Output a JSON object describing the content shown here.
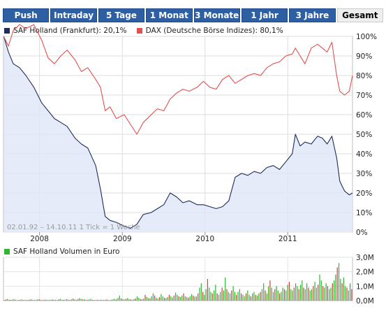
{
  "tabs": [
    {
      "label": "Push",
      "active": false
    },
    {
      "label": "Intraday",
      "active": false
    },
    {
      "label": "5 Tage",
      "active": false
    },
    {
      "label": "1 Monat",
      "active": false
    },
    {
      "label": "3 Monate",
      "active": false
    },
    {
      "label": "1 Jahr",
      "active": false
    },
    {
      "label": "3 Jahre",
      "active": false
    },
    {
      "label": "Gesamt",
      "active": true
    }
  ],
  "colors": {
    "saf": "#1f2d5a",
    "dax": "#e05050",
    "volume_green": "#2fb52f",
    "volume_red": "#d23c3c",
    "tab_blue": "#2f5fa3"
  },
  "chart_data": [
    {
      "type": "line",
      "x_ticks": [
        "2008",
        "2009",
        "2010",
        "2011"
      ],
      "y_ticks": [
        "100%",
        "90%",
        "80%",
        "70%",
        "60%",
        "50%",
        "40%",
        "30%",
        "20%",
        "10%",
        "0%"
      ],
      "ylim": [
        0,
        100
      ],
      "xlim": [
        "2007-07-26",
        "2011-10-14"
      ],
      "range_label": "02.01.92 – 14.10.11  1 Tick = 1 Woche",
      "legend_placement": "top",
      "series": [
        {
          "name": "SAF Holland (Frankfurt): 20,1%",
          "color": "#1f2d5a",
          "points": [
            [
              "2007-07-27",
              100
            ],
            [
              "2007-08-17",
              92
            ],
            [
              "2007-09-07",
              86
            ],
            [
              "2007-10-05",
              84
            ],
            [
              "2007-11-02",
              80
            ],
            [
              "2007-12-07",
              74
            ],
            [
              "2008-01-11",
              66
            ],
            [
              "2008-02-08",
              62
            ],
            [
              "2008-03-07",
              58
            ],
            [
              "2008-04-04",
              56
            ],
            [
              "2008-05-02",
              54
            ],
            [
              "2008-06-06",
              48
            ],
            [
              "2008-07-04",
              45
            ],
            [
              "2008-08-01",
              43
            ],
            [
              "2008-09-05",
              34
            ],
            [
              "2008-09-26",
              22
            ],
            [
              "2008-10-17",
              8
            ],
            [
              "2008-11-07",
              6
            ],
            [
              "2008-12-05",
              5
            ],
            [
              "2009-01-09",
              3
            ],
            [
              "2009-02-06",
              2
            ],
            [
              "2009-03-06",
              4
            ],
            [
              "2009-04-03",
              9
            ],
            [
              "2009-05-08",
              10
            ],
            [
              "2009-06-05",
              12
            ],
            [
              "2009-07-03",
              14
            ],
            [
              "2009-07-31",
              20
            ],
            [
              "2009-08-28",
              18
            ],
            [
              "2009-09-25",
              15
            ],
            [
              "2009-10-23",
              16
            ],
            [
              "2009-11-27",
              14
            ],
            [
              "2009-12-25",
              14
            ],
            [
              "2010-01-22",
              13
            ],
            [
              "2010-02-19",
              12
            ],
            [
              "2010-03-19",
              13
            ],
            [
              "2010-04-16",
              16
            ],
            [
              "2010-05-14",
              28
            ],
            [
              "2010-06-11",
              30
            ],
            [
              "2010-07-09",
              29
            ],
            [
              "2010-08-06",
              31
            ],
            [
              "2010-09-03",
              30
            ],
            [
              "2010-10-01",
              33
            ],
            [
              "2010-10-29",
              34
            ],
            [
              "2010-11-26",
              32
            ],
            [
              "2010-12-24",
              36
            ],
            [
              "2011-01-21",
              40
            ],
            [
              "2011-02-04",
              50
            ],
            [
              "2011-02-25",
              44
            ],
            [
              "2011-03-18",
              46
            ],
            [
              "2011-04-15",
              45
            ],
            [
              "2011-05-13",
              49
            ],
            [
              "2011-06-03",
              48
            ],
            [
              "2011-06-24",
              45
            ],
            [
              "2011-07-15",
              49
            ],
            [
              "2011-08-05",
              38
            ],
            [
              "2011-08-19",
              26
            ],
            [
              "2011-09-09",
              21
            ],
            [
              "2011-09-30",
              19
            ],
            [
              "2011-10-14",
              20
            ]
          ]
        },
        {
          "name": "DAX (Deutsche Börse Indizes): 80,1%",
          "color": "#e05050",
          "points": [
            [
              "2007-07-27",
              100
            ],
            [
              "2007-08-17",
              95
            ],
            [
              "2007-09-07",
              103
            ],
            [
              "2007-10-05",
              106
            ],
            [
              "2007-11-02",
              104
            ],
            [
              "2007-12-07",
              106
            ],
            [
              "2008-01-11",
              98
            ],
            [
              "2008-02-08",
              89
            ],
            [
              "2008-03-07",
              86
            ],
            [
              "2008-04-04",
              90
            ],
            [
              "2008-05-02",
              93
            ],
            [
              "2008-06-06",
              88
            ],
            [
              "2008-07-04",
              82
            ],
            [
              "2008-08-01",
              84
            ],
            [
              "2008-09-05",
              78
            ],
            [
              "2008-09-26",
              74
            ],
            [
              "2008-10-17",
              62
            ],
            [
              "2008-11-07",
              64
            ],
            [
              "2008-12-05",
              58
            ],
            [
              "2009-01-09",
              60
            ],
            [
              "2009-02-06",
              55
            ],
            [
              "2009-03-06",
              50
            ],
            [
              "2009-04-03",
              56
            ],
            [
              "2009-05-08",
              60
            ],
            [
              "2009-06-05",
              63
            ],
            [
              "2009-07-03",
              62
            ],
            [
              "2009-07-31",
              68
            ],
            [
              "2009-08-28",
              71
            ],
            [
              "2009-09-25",
              73
            ],
            [
              "2009-10-23",
              72
            ],
            [
              "2009-11-27",
              74
            ],
            [
              "2009-12-25",
              77
            ],
            [
              "2010-01-22",
              74
            ],
            [
              "2010-02-19",
              73
            ],
            [
              "2010-03-19",
              78
            ],
            [
              "2010-04-16",
              80
            ],
            [
              "2010-05-14",
              76
            ],
            [
              "2010-06-11",
              78
            ],
            [
              "2010-07-09",
              80
            ],
            [
              "2010-08-06",
              81
            ],
            [
              "2010-09-03",
              80
            ],
            [
              "2010-10-01",
              84
            ],
            [
              "2010-10-29",
              86
            ],
            [
              "2010-11-26",
              87
            ],
            [
              "2010-12-24",
              90
            ],
            [
              "2011-01-21",
              91
            ],
            [
              "2011-02-04",
              94
            ],
            [
              "2011-02-25",
              90
            ],
            [
              "2011-03-18",
              86
            ],
            [
              "2011-04-15",
              94
            ],
            [
              "2011-05-13",
              96
            ],
            [
              "2011-06-03",
              94
            ],
            [
              "2011-06-24",
              92
            ],
            [
              "2011-07-15",
              97
            ],
            [
              "2011-08-05",
              80
            ],
            [
              "2011-08-19",
              72
            ],
            [
              "2011-09-09",
              70
            ],
            [
              "2011-09-30",
              72
            ],
            [
              "2011-10-14",
              80
            ]
          ]
        }
      ]
    },
    {
      "type": "bar",
      "legend": "SAF Holland Volumen in Euro",
      "y_ticks": [
        "3,0M",
        "2,0M",
        "1,0M",
        "0,0M"
      ],
      "ylim": [
        0,
        3.0
      ],
      "unit": "M Euro",
      "x_range": [
        "2007-07-26",
        "2011-10-14"
      ],
      "weekly_values": [
        0.05,
        0.08,
        0.12,
        0.06,
        0.05,
        0.07,
        0.1,
        0.06,
        0.04,
        0.05,
        0.06,
        0.08,
        0.05,
        0.04,
        0.06,
        0.05,
        0.07,
        0.09,
        0.05,
        0.04,
        0.06,
        0.1,
        0.08,
        0.05,
        0.04,
        0.06,
        0.07,
        0.05,
        0.04,
        0.06,
        0.09,
        0.05,
        0.06,
        0.04,
        0.08,
        0.12,
        0.06,
        0.05,
        0.07,
        0.1,
        0.06,
        0.05,
        0.09,
        0.14,
        0.08,
        0.06,
        0.1,
        0.18,
        0.12,
        0.08,
        0.1,
        0.06,
        0.05,
        0.08,
        0.12,
        0.06,
        0.05,
        0.04,
        0.06,
        0.05,
        0.07,
        0.04,
        0.05,
        0.06,
        0.08,
        0.05,
        0.04,
        0.06,
        0.1,
        0.12,
        0.08,
        0.2,
        0.35,
        0.15,
        0.1,
        0.08,
        0.12,
        0.18,
        0.1,
        0.08,
        0.06,
        0.1,
        0.15,
        0.3,
        0.2,
        0.12,
        0.1,
        0.14,
        0.4,
        0.25,
        0.18,
        0.15,
        0.3,
        0.5,
        0.35,
        0.2,
        0.15,
        0.25,
        0.45,
        0.3,
        0.2,
        0.18,
        0.25,
        0.4,
        0.3,
        0.22,
        0.35,
        0.55,
        0.4,
        0.3,
        0.25,
        0.35,
        0.5,
        0.3,
        0.25,
        0.2,
        0.3,
        0.45,
        0.35,
        0.28,
        0.3,
        0.5,
        0.9,
        1.2,
        0.6,
        0.4,
        0.8,
        1.5,
        0.9,
        0.6,
        0.5,
        0.7,
        1.1,
        0.5,
        0.4,
        0.6,
        0.9,
        0.7,
        1.6,
        0.8,
        0.6,
        0.5,
        0.7,
        1.0,
        0.6,
        0.4,
        0.6,
        0.8,
        0.5,
        0.4,
        0.3,
        0.5,
        0.7,
        0.4,
        0.3,
        0.5,
        0.6,
        0.4,
        0.35,
        0.5,
        0.6,
        0.8,
        1.2,
        0.7,
        0.5,
        1.0,
        1.4,
        0.9,
        0.6,
        0.8,
        1.0,
        0.7,
        0.5,
        0.6,
        0.9,
        0.8,
        0.7,
        1.1,
        1.3,
        0.8,
        0.7,
        0.9,
        1.2,
        1.0,
        0.8,
        1.1,
        1.4,
        0.9,
        0.8,
        1.2,
        0.9,
        0.7,
        0.8,
        1.0,
        1.3,
        0.9,
        1.1,
        1.8,
        1.4,
        1.0,
        0.9,
        1.2,
        1.0,
        0.8,
        0.9,
        1.2,
        1.4,
        1.8,
        2.3,
        2.6,
        1.5,
        1.2,
        1.6,
        1.0,
        0.9,
        0.7,
        1.2,
        0.8
      ]
    }
  ]
}
